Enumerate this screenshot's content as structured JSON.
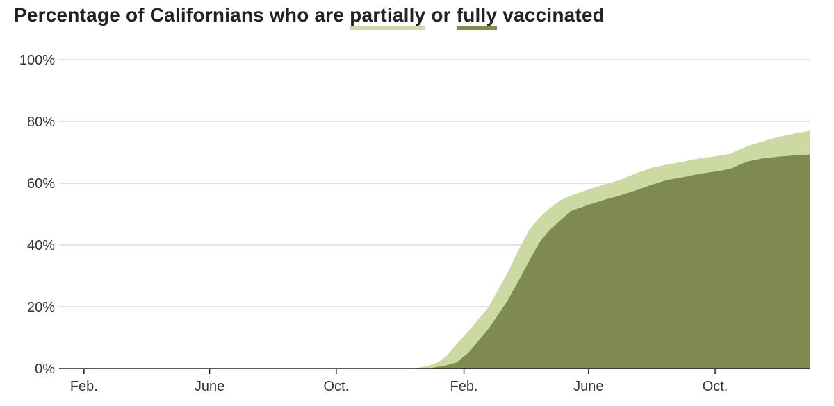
{
  "title": {
    "prefix": "Percentage of Californians who are",
    "partial": "partially",
    "middle": "or",
    "full": "fully",
    "suffix": "vaccinated"
  },
  "colors": {
    "partial": "#ccd9a2",
    "full": "#7e8a52",
    "grid": "#d9d9d9",
    "axis": "#222222"
  },
  "chart_data": {
    "type": "area",
    "xlabel": "",
    "ylabel": "",
    "ylim": [
      0,
      100
    ],
    "y_ticks": [
      {
        "value": 0,
        "label": "0%"
      },
      {
        "value": 20,
        "label": "20%"
      },
      {
        "value": 40,
        "label": "40%"
      },
      {
        "value": 60,
        "label": "60%"
      },
      {
        "value": 80,
        "label": "80%"
      },
      {
        "value": 100,
        "label": "100%"
      }
    ],
    "x_range": [
      "2020-01-08",
      "2021-12-31"
    ],
    "x_ticks": [
      {
        "date": "2020-02-01",
        "label": "Feb."
      },
      {
        "date": "2020-06-01",
        "label": "June"
      },
      {
        "date": "2020-10-01",
        "label": "Oct."
      },
      {
        "date": "2021-02-01",
        "label": "Feb."
      },
      {
        "date": "2021-06-01",
        "label": "June"
      },
      {
        "date": "2021-10-01",
        "label": "Oct."
      }
    ],
    "grid": true,
    "series": [
      {
        "name": "partially",
        "color": "#ccd9a2",
        "points": [
          [
            "2020-12-15",
            0
          ],
          [
            "2020-12-28",
            0.8
          ],
          [
            "2021-01-07",
            2
          ],
          [
            "2021-01-15",
            4
          ],
          [
            "2021-01-25",
            8
          ],
          [
            "2021-02-05",
            12
          ],
          [
            "2021-02-15",
            16
          ],
          [
            "2021-02-25",
            20
          ],
          [
            "2021-03-05",
            25
          ],
          [
            "2021-03-15",
            31
          ],
          [
            "2021-03-25",
            38
          ],
          [
            "2021-04-05",
            45
          ],
          [
            "2021-04-15",
            49
          ],
          [
            "2021-04-25",
            52
          ],
          [
            "2021-05-05",
            54.5
          ],
          [
            "2021-05-15",
            56
          ],
          [
            "2021-06-01",
            58
          ],
          [
            "2021-06-15",
            59.5
          ],
          [
            "2021-07-01",
            61
          ],
          [
            "2021-07-15",
            63
          ],
          [
            "2021-08-01",
            65
          ],
          [
            "2021-08-15",
            66
          ],
          [
            "2021-09-01",
            67
          ],
          [
            "2021-09-15",
            68
          ],
          [
            "2021-10-01",
            68.7
          ],
          [
            "2021-10-15",
            69.5
          ],
          [
            "2021-11-01",
            72
          ],
          [
            "2021-11-15",
            73.5
          ],
          [
            "2021-12-01",
            75
          ],
          [
            "2021-12-15",
            76
          ],
          [
            "2021-12-31",
            77
          ]
        ]
      },
      {
        "name": "fully",
        "color": "#7e8a52",
        "points": [
          [
            "2020-12-28",
            0
          ],
          [
            "2021-01-07",
            0.5
          ],
          [
            "2021-01-15",
            1
          ],
          [
            "2021-01-25",
            2
          ],
          [
            "2021-02-05",
            5
          ],
          [
            "2021-02-15",
            9
          ],
          [
            "2021-02-25",
            13
          ],
          [
            "2021-03-05",
            17
          ],
          [
            "2021-03-15",
            22
          ],
          [
            "2021-03-25",
            28
          ],
          [
            "2021-04-05",
            35
          ],
          [
            "2021-04-15",
            41
          ],
          [
            "2021-04-25",
            45
          ],
          [
            "2021-05-05",
            48
          ],
          [
            "2021-05-15",
            51
          ],
          [
            "2021-06-01",
            53
          ],
          [
            "2021-06-15",
            54.5
          ],
          [
            "2021-07-01",
            56
          ],
          [
            "2021-07-15",
            57.5
          ],
          [
            "2021-08-01",
            59.5
          ],
          [
            "2021-08-15",
            61
          ],
          [
            "2021-09-01",
            62
          ],
          [
            "2021-09-15",
            63
          ],
          [
            "2021-10-01",
            63.8
          ],
          [
            "2021-10-15",
            64.6
          ],
          [
            "2021-11-01",
            67
          ],
          [
            "2021-11-15",
            68
          ],
          [
            "2021-12-01",
            68.6
          ],
          [
            "2021-12-15",
            69
          ],
          [
            "2021-12-31",
            69.3
          ]
        ]
      }
    ]
  }
}
